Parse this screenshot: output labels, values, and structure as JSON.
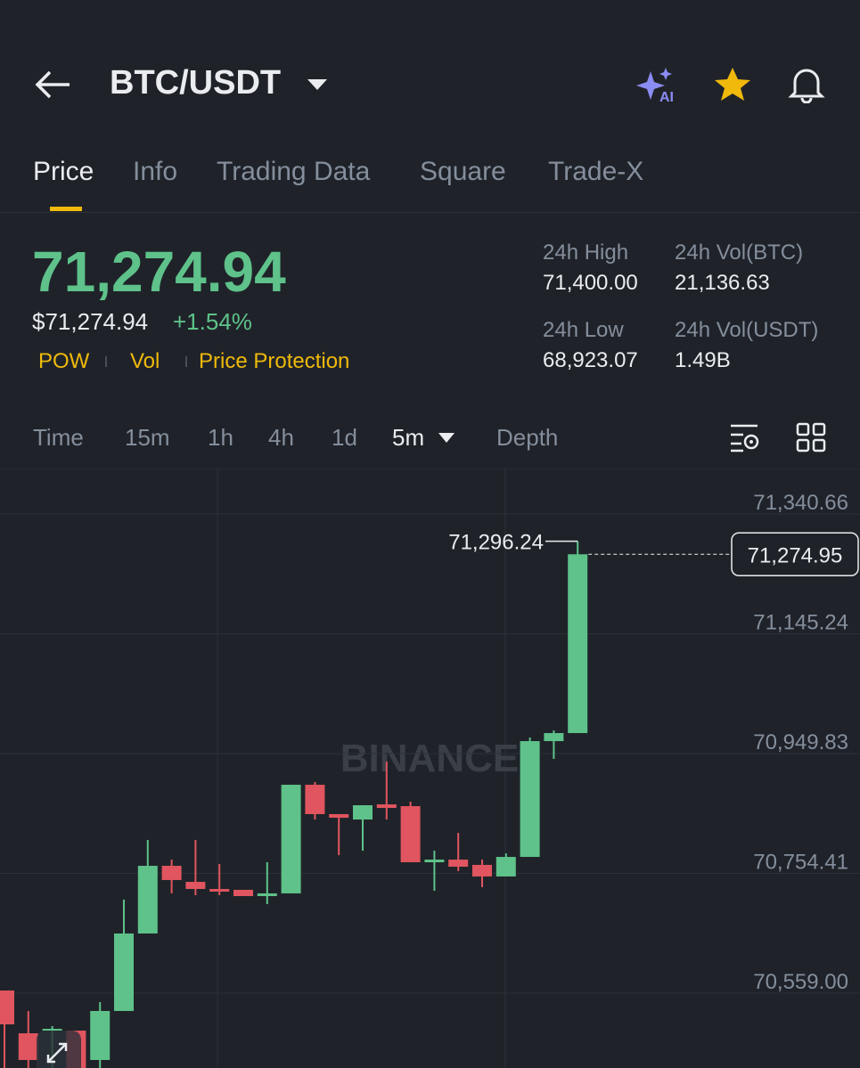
{
  "header": {
    "pair": "BTC/USDT",
    "ai_badge": "AI"
  },
  "tabs": [
    "Price",
    "Info",
    "Trading Data",
    "Square",
    "Trade-X"
  ],
  "price": {
    "last": "71,274.94",
    "usd": "$71,274.94",
    "change": "+1.54%",
    "tags": [
      "POW",
      "Vol",
      "Price Protection"
    ]
  },
  "stats": [
    {
      "label": "24h High",
      "value": "71,400.00"
    },
    {
      "label": "24h Vol(BTC)",
      "value": "21,136.63"
    },
    {
      "label": "24h Low",
      "value": "68,923.07"
    },
    {
      "label": "24h Vol(USDT)",
      "value": "1.49B"
    }
  ],
  "timeframes": [
    "Time",
    "15m",
    "1h",
    "4h",
    "1d",
    "5m",
    "Depth"
  ],
  "chart_data": {
    "type": "candlestick",
    "watermark": "BINANCE",
    "open": [
      70563.4,
      70493.6,
      70498.0,
      70498.0,
      70450.1,
      70530.0,
      70656.4,
      70766.8,
      70740.6,
      70729.0,
      70727.6,
      70717.4,
      70721.8,
      70899.0,
      70851.1,
      70842.3,
      70867.0,
      70864.1,
      70772.6,
      70776.9,
      70768.3,
      70749.4,
      70781.3,
      70970.2,
      70983.3
    ],
    "high": [
      70563.4,
      70529.9,
      70505.3,
      70498.0,
      70544.5,
      70711.6,
      70808.9,
      70776.9,
      70808.9,
      70769.7,
      70727.6,
      70772.6,
      70899.0,
      70903.4,
      70851.1,
      70865.6,
      70936.8,
      70871.4,
      70791.5,
      70820.5,
      70776.9,
      70787.1,
      70976.0,
      70987.6,
      71296.24
    ],
    "low": [
      70437.0,
      70437.0,
      70437.0,
      70437.0,
      70437.0,
      70530.0,
      70656.4,
      70721.8,
      70718.9,
      70718.9,
      70717.4,
      70704.3,
      70721.8,
      70842.3,
      70784.2,
      70791.5,
      70842.3,
      70772.6,
      70726.1,
      70758.1,
      70731.9,
      70749.4,
      70781.3,
      70941.1,
      70983.3
    ],
    "close": [
      70508.2,
      70450.1,
      70500.9,
      70437.0,
      70530.0,
      70656.4,
      70766.8,
      70743.6,
      70729.0,
      70724.7,
      70717.4,
      70721.8,
      70899.0,
      70851.1,
      70845.2,
      70865.6,
      70861.2,
      70772.6,
      70776.9,
      70765.3,
      70749.4,
      70781.3,
      70970.2,
      70983.3,
      71274.95
    ],
    "ylim": [
      70437.0,
      71414.8
    ],
    "yticks": [
      {
        "value": 70559.0,
        "label": "70,559.00"
      },
      {
        "value": 70754.41,
        "label": "70,754.41"
      },
      {
        "value": 70949.83,
        "label": "70,949.83"
      },
      {
        "value": 71145.24,
        "label": "71,145.24"
      },
      {
        "value": 71340.66,
        "label": "71,340.66"
      }
    ],
    "high_label": {
      "value": 71296.24,
      "label": "71,296.24"
    },
    "last_price": {
      "value": 71274.95,
      "label": "71,274.95"
    },
    "up_color": "#5ec28a",
    "down_color": "#e0555f",
    "grid": true
  }
}
